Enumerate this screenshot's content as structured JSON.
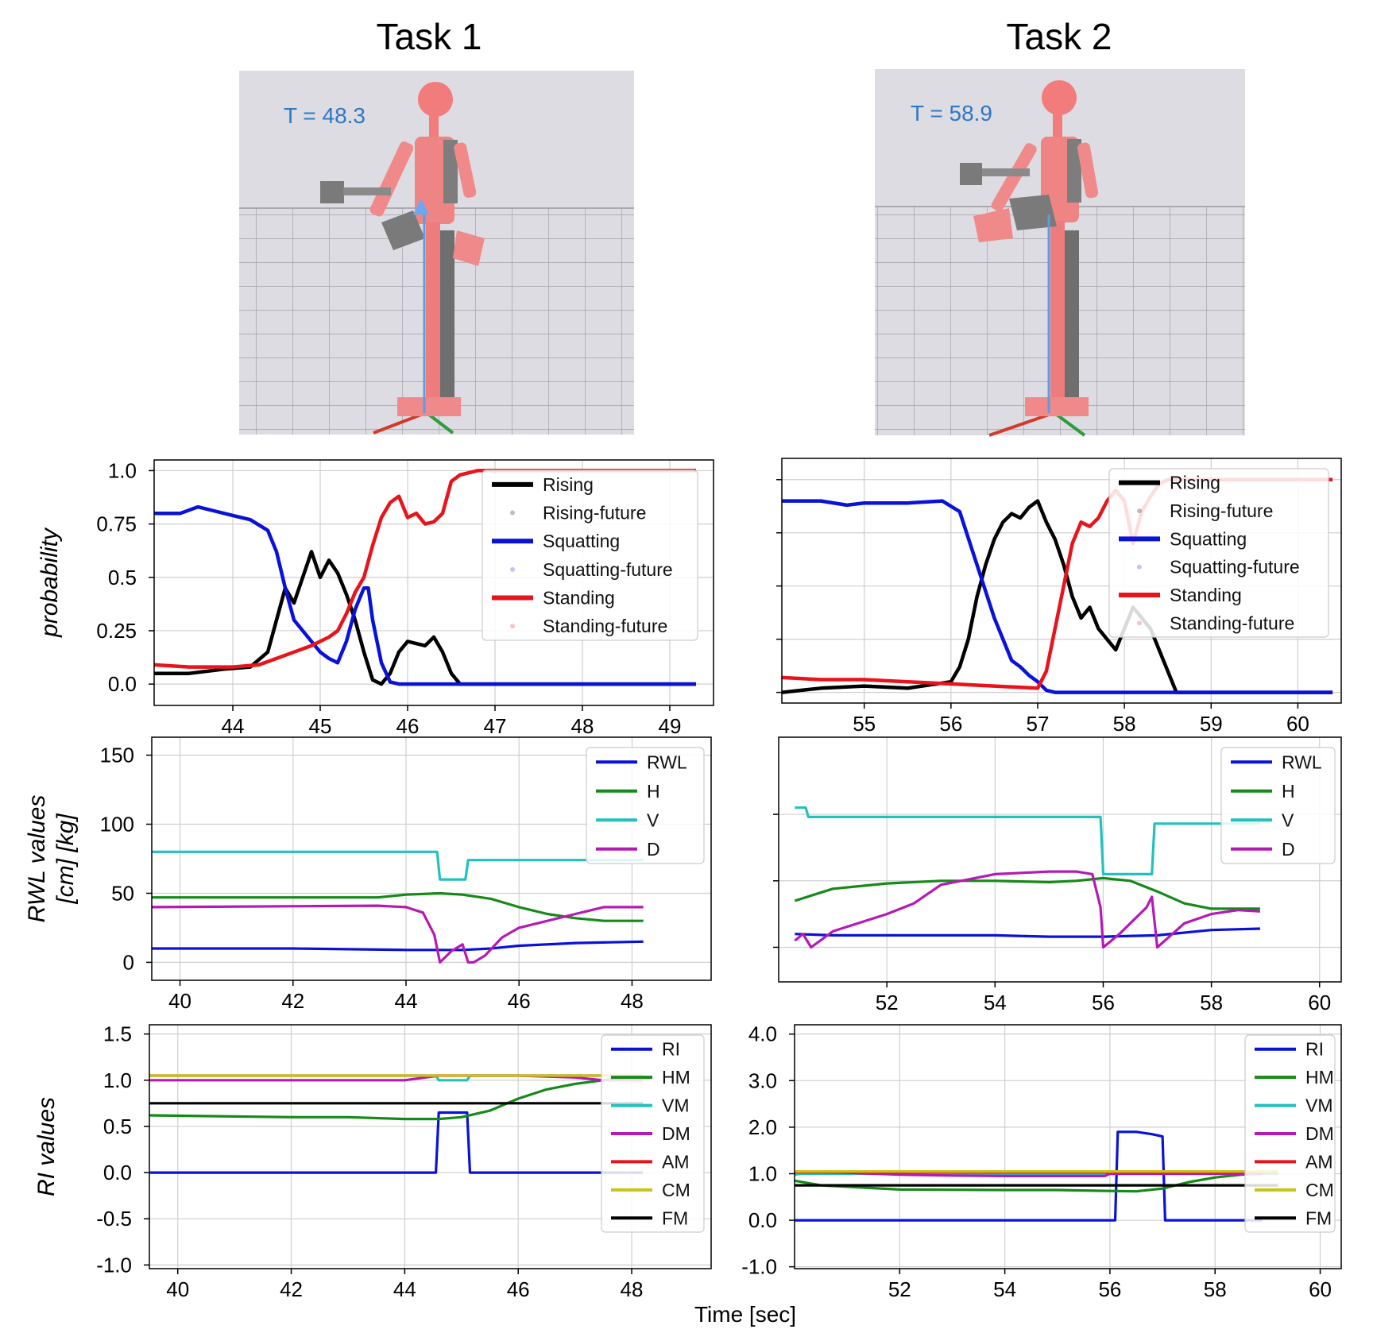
{
  "figure": {
    "task1_title": "Task 1",
    "task2_title": "Task 2",
    "xlabel": "Time [sec]",
    "colors": {
      "blue": "#0a12d8",
      "red": "#e8141b",
      "black": "#000000",
      "green": "#168a18",
      "cyan": "#22c1bf",
      "magenta": "#b41ab4",
      "olive": "#c8c21a",
      "annotation": "#2f78c4",
      "scene_bg": "#dcdce2"
    }
  },
  "scenes": [
    {
      "name": "task1-scene",
      "time_label": "T = 48.3"
    },
    {
      "name": "task2-scene",
      "time_label": "T = 58.9"
    }
  ],
  "chart_data": [
    {
      "id": "task1-probability",
      "type": "line",
      "ylabel": "probability",
      "xlim": [
        43.1,
        49.5
      ],
      "ylim": [
        -0.1,
        1.05
      ],
      "xticks": [
        "44",
        "45",
        "46",
        "47",
        "48",
        "49"
      ],
      "yticks": [
        "0.0",
        "0.25",
        "0.5",
        "0.75",
        "1.0"
      ],
      "legend": [
        "Rising",
        "Rising-future",
        "Squatting",
        "Squatting-future",
        "Standing",
        "Standing-future"
      ],
      "legend_position": "top-right",
      "grid": true,
      "series": [
        {
          "name": "Rising",
          "x": [
            43.1,
            43.5,
            43.9,
            44.2,
            44.4,
            44.5,
            44.6,
            44.7,
            44.8,
            44.9,
            45.0,
            45.1,
            45.2,
            45.3,
            45.4,
            45.5,
            45.6,
            45.7,
            45.8,
            45.9,
            46.0,
            46.2,
            46.3,
            46.4,
            46.5,
            46.6,
            47.0,
            47.5,
            48.0,
            49.3
          ],
          "y": [
            0.05,
            0.05,
            0.07,
            0.08,
            0.15,
            0.3,
            0.45,
            0.38,
            0.5,
            0.62,
            0.5,
            0.58,
            0.52,
            0.42,
            0.3,
            0.15,
            0.02,
            0.0,
            0.05,
            0.15,
            0.2,
            0.18,
            0.22,
            0.15,
            0.05,
            0.0,
            0.0,
            0.0,
            0.0,
            0.0
          ]
        },
        {
          "name": "Squatting",
          "x": [
            43.1,
            43.4,
            43.6,
            43.8,
            44.0,
            44.2,
            44.4,
            44.5,
            44.6,
            44.7,
            44.8,
            44.9,
            45.0,
            45.1,
            45.2,
            45.3,
            45.4,
            45.5,
            45.55,
            45.6,
            45.7,
            45.8,
            45.9,
            46.0,
            46.5,
            47.0,
            47.5,
            48.0,
            48.5,
            49.3
          ],
          "y": [
            0.8,
            0.8,
            0.83,
            0.81,
            0.79,
            0.77,
            0.72,
            0.62,
            0.45,
            0.3,
            0.25,
            0.2,
            0.15,
            0.12,
            0.1,
            0.2,
            0.35,
            0.45,
            0.45,
            0.3,
            0.1,
            0.01,
            0.0,
            0.0,
            0.0,
            0.0,
            0.0,
            0.0,
            0.0,
            0.0
          ]
        },
        {
          "name": "Standing",
          "x": [
            43.1,
            43.5,
            44.0,
            44.3,
            44.5,
            44.7,
            44.9,
            45.0,
            45.1,
            45.2,
            45.3,
            45.4,
            45.5,
            45.6,
            45.7,
            45.8,
            45.9,
            46.0,
            46.1,
            46.2,
            46.3,
            46.4,
            46.5,
            46.6,
            46.8,
            47.0,
            47.5,
            48.0,
            48.5,
            49.0,
            49.3
          ],
          "y": [
            0.09,
            0.08,
            0.08,
            0.09,
            0.12,
            0.15,
            0.18,
            0.2,
            0.22,
            0.25,
            0.33,
            0.43,
            0.5,
            0.65,
            0.78,
            0.85,
            0.88,
            0.78,
            0.8,
            0.75,
            0.76,
            0.8,
            0.95,
            0.98,
            1.0,
            1.0,
            1.0,
            1.0,
            1.0,
            1.0,
            1.0
          ]
        }
      ]
    },
    {
      "id": "task2-probability",
      "type": "line",
      "ylabel": "",
      "xlim": [
        54.05,
        60.5
      ],
      "ylim": [
        -0.05,
        1.1
      ],
      "xticks": [
        "55",
        "56",
        "57",
        "58",
        "59",
        "60"
      ],
      "yticks": [],
      "legend": [
        "Rising",
        "Rising-future",
        "Squatting",
        "Squatting-future",
        "Standing",
        "Standing-future"
      ],
      "legend_position": "top-right",
      "grid": true,
      "series": [
        {
          "name": "Rising",
          "x": [
            54.05,
            54.5,
            55.0,
            55.5,
            56.0,
            56.1,
            56.2,
            56.3,
            56.4,
            56.5,
            56.6,
            56.7,
            56.8,
            56.9,
            57.0,
            57.1,
            57.2,
            57.3,
            57.4,
            57.5,
            57.6,
            57.7,
            57.8,
            57.9,
            58.0,
            58.1,
            58.2,
            58.3,
            58.4,
            58.5,
            58.6,
            59.0,
            60.4
          ],
          "y": [
            0.0,
            0.02,
            0.03,
            0.02,
            0.05,
            0.12,
            0.25,
            0.45,
            0.6,
            0.72,
            0.8,
            0.84,
            0.82,
            0.87,
            0.9,
            0.8,
            0.72,
            0.6,
            0.45,
            0.35,
            0.4,
            0.3,
            0.25,
            0.2,
            0.3,
            0.4,
            0.35,
            0.3,
            0.2,
            0.1,
            0.0,
            0.0,
            0.0
          ]
        },
        {
          "name": "Squatting",
          "x": [
            54.05,
            54.5,
            54.8,
            55.0,
            55.5,
            55.9,
            56.1,
            56.3,
            56.5,
            56.7,
            56.8,
            56.9,
            57.0,
            57.1,
            57.2,
            57.5,
            58.0,
            58.5,
            59.0,
            60.4
          ],
          "y": [
            0.9,
            0.9,
            0.88,
            0.89,
            0.89,
            0.9,
            0.85,
            0.6,
            0.35,
            0.15,
            0.12,
            0.08,
            0.05,
            0.01,
            0.0,
            0.0,
            0.0,
            0.0,
            0.0,
            0.0
          ]
        },
        {
          "name": "Standing",
          "x": [
            54.05,
            54.5,
            55.0,
            55.5,
            56.0,
            56.5,
            57.0,
            57.1,
            57.2,
            57.3,
            57.4,
            57.5,
            57.6,
            57.7,
            57.8,
            57.9,
            58.0,
            58.1,
            58.2,
            58.3,
            58.4,
            58.5,
            59.0,
            59.5,
            60.4
          ],
          "y": [
            0.07,
            0.06,
            0.06,
            0.05,
            0.04,
            0.03,
            0.02,
            0.1,
            0.3,
            0.5,
            0.7,
            0.8,
            0.78,
            0.82,
            0.9,
            0.95,
            0.9,
            0.7,
            0.85,
            0.92,
            0.98,
            1.0,
            1.0,
            1.0,
            1.0
          ]
        }
      ]
    },
    {
      "id": "task1-rwl",
      "type": "line",
      "ylabel": "RWL values\n[cm] [kg]",
      "xlim": [
        39.5,
        49.4
      ],
      "ylim": [
        -13,
        163
      ],
      "xticks": [
        "40",
        "42",
        "44",
        "46",
        "48"
      ],
      "yticks": [
        "0",
        "50",
        "100",
        "150"
      ],
      "legend": [
        "RWL",
        "H",
        "V",
        "D"
      ],
      "legend_position": "top-right",
      "grid": true,
      "series": [
        {
          "name": "RWL",
          "x": [
            39.5,
            42,
            44,
            45,
            45.5,
            46,
            47,
            48.2
          ],
          "y": [
            10,
            10,
            9,
            9,
            10,
            12,
            14,
            15
          ]
        },
        {
          "name": "H",
          "x": [
            39.5,
            42,
            43.5,
            44,
            44.6,
            45,
            45.5,
            46,
            46.5,
            47,
            47.5,
            48.2
          ],
          "y": [
            47,
            47,
            47,
            49,
            50,
            49,
            46,
            40,
            35,
            32,
            30,
            30
          ]
        },
        {
          "name": "V",
          "x": [
            39.5,
            44.55,
            44.6,
            45.05,
            45.1,
            48.2
          ],
          "y": [
            80,
            80,
            60,
            60,
            74,
            74
          ]
        },
        {
          "name": "D",
          "x": [
            39.5,
            43.5,
            44,
            44.3,
            44.5,
            44.6,
            44.8,
            45.0,
            45.1,
            45.2,
            45.4,
            45.7,
            46,
            47,
            47.5,
            48.2
          ],
          "y": [
            40,
            41,
            40,
            36,
            20,
            0,
            8,
            13,
            0,
            0,
            5,
            18,
            25,
            35,
            40,
            40
          ]
        }
      ]
    },
    {
      "id": "task2-rwl",
      "type": "line",
      "ylabel": "",
      "xlim": [
        50.0,
        60.4
      ],
      "ylim": [
        -26,
        158
      ],
      "xticks": [
        "52",
        "54",
        "56",
        "58",
        "60"
      ],
      "yticks": [],
      "legend": [
        "RWL",
        "H",
        "V",
        "D"
      ],
      "legend_position": "top-right",
      "grid": true,
      "series": [
        {
          "name": "RWL",
          "x": [
            50.3,
            51,
            52,
            54,
            55,
            56,
            57,
            58,
            58.9
          ],
          "y": [
            10,
            9,
            9,
            9,
            8,
            8,
            9,
            13,
            14
          ]
        },
        {
          "name": "H",
          "x": [
            50.3,
            51,
            52,
            53,
            54,
            55,
            55.5,
            56,
            56.5,
            57,
            57.5,
            58,
            58.9
          ],
          "y": [
            35,
            44,
            48,
            50,
            50,
            49,
            50,
            52,
            50,
            42,
            33,
            29,
            29
          ]
        },
        {
          "name": "V",
          "x": [
            50.3,
            50.5,
            50.55,
            55.95,
            56.0,
            56.9,
            56.95,
            58.9
          ],
          "y": [
            105,
            105,
            98,
            98,
            55,
            55,
            93,
            93
          ]
        },
        {
          "name": "D",
          "x": [
            50.3,
            50.45,
            50.6,
            51,
            52,
            52.5,
            53,
            54,
            55,
            55.5,
            55.8,
            55.95,
            56.0,
            56.3,
            56.8,
            56.9,
            57.0,
            57.5,
            58,
            58.5,
            58.9
          ],
          "y": [
            5,
            10,
            0,
            12,
            25,
            33,
            47,
            55,
            57,
            57,
            55,
            30,
            0,
            10,
            30,
            38,
            0,
            18,
            25,
            28,
            27
          ]
        }
      ]
    },
    {
      "id": "task1-ri",
      "type": "line",
      "ylabel": "RI values",
      "xlim": [
        39.5,
        49.4
      ],
      "ylim": [
        -1.04,
        1.6
      ],
      "xticks": [
        "40",
        "42",
        "44",
        "46",
        "48"
      ],
      "yticks": [
        "-1.0",
        "-0.5",
        "0.0",
        "0.5",
        "1.0",
        "1.5"
      ],
      "legend": [
        "RI",
        "HM",
        "VM",
        "DM",
        "AM",
        "CM",
        "FM"
      ],
      "legend_position": "top-right",
      "grid": true,
      "series": [
        {
          "name": "RI",
          "x": [
            39.5,
            44.55,
            44.6,
            45.1,
            45.15,
            48.2
          ],
          "y": [
            0,
            0,
            0.65,
            0.65,
            0,
            0
          ]
        },
        {
          "name": "HM",
          "x": [
            39.5,
            42,
            43,
            44,
            44.6,
            45,
            45.5,
            46,
            46.5,
            47,
            47.5,
            48.2
          ],
          "y": [
            0.62,
            0.6,
            0.6,
            0.58,
            0.58,
            0.6,
            0.67,
            0.8,
            0.9,
            0.96,
            1.0,
            1.05
          ]
        },
        {
          "name": "VM",
          "x": [
            39.5,
            44.55,
            44.6,
            45.1,
            45.15,
            48.2
          ],
          "y": [
            1.05,
            1.05,
            1.0,
            1.0,
            1.05,
            1.05
          ]
        },
        {
          "name": "DM",
          "x": [
            39.5,
            44,
            44.6,
            46,
            47,
            47.5,
            48.2
          ],
          "y": [
            1.0,
            1.0,
            1.05,
            1.05,
            1.03,
            1.0,
            1.0
          ]
        },
        {
          "name": "AM",
          "x": [
            39.5,
            48.2
          ],
          "y": [
            1.05,
            1.05
          ]
        },
        {
          "name": "CM",
          "x": [
            39.5,
            48.2
          ],
          "y": [
            1.05,
            1.05
          ]
        },
        {
          "name": "FM",
          "x": [
            39.5,
            48.2
          ],
          "y": [
            0.75,
            0.75
          ]
        }
      ]
    },
    {
      "id": "task2-ri",
      "type": "line",
      "ylabel": "",
      "xlim": [
        50.0,
        60.4
      ],
      "ylim": [
        -1.04,
        4.2
      ],
      "xticks": [
        "52",
        "54",
        "56",
        "58",
        "60"
      ],
      "yticks": [
        "-1.0",
        "0.0",
        "1.0",
        "2.0",
        "3.0",
        "4.0"
      ],
      "legend": [
        "RI",
        "HM",
        "VM",
        "DM",
        "AM",
        "CM",
        "FM"
      ],
      "legend_position": "top-right",
      "grid": true,
      "series": [
        {
          "name": "RI",
          "x": [
            50.0,
            56.1,
            56.15,
            56.5,
            56.8,
            57.0,
            57.05,
            58.9
          ],
          "y": [
            0,
            0,
            1.9,
            1.9,
            1.85,
            1.8,
            0,
            0
          ]
        },
        {
          "name": "HM",
          "x": [
            50.0,
            50.5,
            51,
            52,
            54,
            55,
            55.5,
            56,
            56.5,
            57,
            57.5,
            58,
            58.5,
            58.9
          ],
          "y": [
            0.85,
            0.75,
            0.72,
            0.66,
            0.65,
            0.65,
            0.64,
            0.63,
            0.62,
            0.68,
            0.82,
            0.92,
            0.98,
            1.0
          ]
        },
        {
          "name": "VM",
          "x": [
            50.0,
            50.1,
            59.2
          ],
          "y": [
            0.98,
            1.0,
            1.0
          ]
        },
        {
          "name": "DM",
          "x": [
            50.0,
            51,
            52,
            53,
            54,
            55,
            55.9,
            56.0,
            57,
            58,
            58.9
          ],
          "y": [
            1.05,
            1.02,
            0.98,
            0.96,
            0.95,
            0.95,
            0.95,
            1.0,
            1.0,
            1.0,
            1.0
          ]
        },
        {
          "name": "AM",
          "x": [
            50.0,
            59.2
          ],
          "y": [
            1.03,
            1.03
          ]
        },
        {
          "name": "CM",
          "x": [
            50.0,
            59.2
          ],
          "y": [
            1.05,
            1.05
          ]
        },
        {
          "name": "FM",
          "x": [
            50.0,
            59.2
          ],
          "y": [
            0.75,
            0.75
          ]
        }
      ]
    }
  ]
}
